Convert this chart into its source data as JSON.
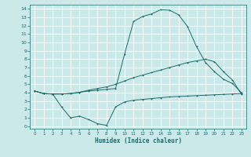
{
  "xlabel": "Humidex (Indice chaleur)",
  "xlim": [
    -0.5,
    23.5
  ],
  "ylim": [
    -0.3,
    14.5
  ],
  "xticks": [
    0,
    1,
    2,
    3,
    4,
    5,
    6,
    7,
    8,
    9,
    10,
    11,
    12,
    13,
    14,
    15,
    16,
    17,
    18,
    19,
    20,
    21,
    22,
    23
  ],
  "yticks": [
    0,
    1,
    2,
    3,
    4,
    5,
    6,
    7,
    8,
    9,
    10,
    11,
    12,
    13,
    14
  ],
  "bg_color": "#cce9e9",
  "line_color": "#1a6b6b",
  "grid_color": "#ffffff",
  "line1_x": [
    0,
    1,
    2,
    3,
    4,
    5,
    6,
    7,
    8,
    9,
    10,
    11,
    12,
    13,
    14,
    15,
    16,
    17,
    18,
    19,
    20,
    21,
    22,
    23
  ],
  "line1_y": [
    4.2,
    3.9,
    3.85,
    3.85,
    3.9,
    4.05,
    4.2,
    4.3,
    4.4,
    4.5,
    8.6,
    12.5,
    13.1,
    13.4,
    13.9,
    13.85,
    13.3,
    11.9,
    9.5,
    7.6,
    6.5,
    5.6,
    5.1,
    4.0
  ],
  "line2_x": [
    0,
    1,
    2,
    3,
    4,
    5,
    6,
    7,
    8,
    9,
    10,
    11,
    12,
    13,
    14,
    15,
    16,
    17,
    18,
    19,
    20,
    21,
    22,
    23
  ],
  "line2_y": [
    4.2,
    3.9,
    3.85,
    3.85,
    3.9,
    4.05,
    4.3,
    4.5,
    4.7,
    5.0,
    5.4,
    5.8,
    6.1,
    6.4,
    6.7,
    7.0,
    7.3,
    7.6,
    7.8,
    8.0,
    7.7,
    6.5,
    5.5,
    3.8
  ],
  "line3_x": [
    0,
    1,
    2,
    3,
    4,
    5,
    6,
    7,
    8,
    9,
    10,
    11,
    12,
    13,
    14,
    15,
    16,
    17,
    18,
    19,
    20,
    21,
    22,
    23
  ],
  "line3_y": [
    4.2,
    3.9,
    3.85,
    2.3,
    1.0,
    1.2,
    0.8,
    0.3,
    0.1,
    2.3,
    2.9,
    3.1,
    3.2,
    3.3,
    3.4,
    3.5,
    3.55,
    3.6,
    3.65,
    3.7,
    3.75,
    3.8,
    3.85,
    3.9
  ]
}
